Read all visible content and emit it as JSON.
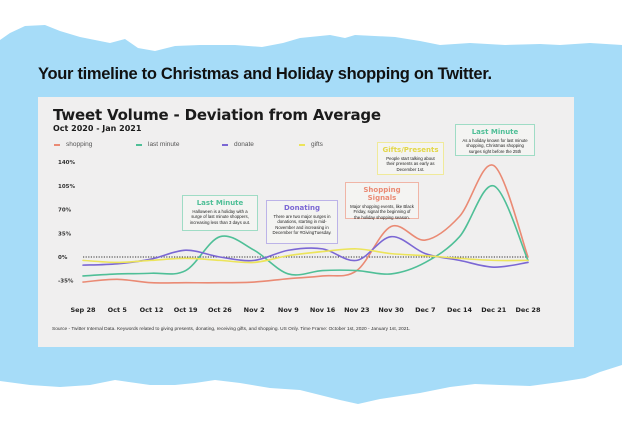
{
  "page": {
    "headline": "Your timeline to Christmas and Holiday shopping on Twitter.",
    "background_color": "#a6dcf8",
    "card_color": "#f0efef"
  },
  "chart_data": {
    "type": "line",
    "title": "Tweet Volume - Deviation from Average",
    "subtitle": "Oct 2020 - Jan 2021",
    "xlabel": "",
    "ylabel": "",
    "ylim": [
      -35,
      140
    ],
    "yticks": [
      "140%",
      "105%",
      "70%",
      "35%",
      "0%",
      "-35%"
    ],
    "ytick_values": [
      140,
      105,
      70,
      35,
      0,
      -35
    ],
    "grid": false,
    "baseline": {
      "value": 0,
      "style": "dotted"
    },
    "legend_position": "top-left",
    "categories": [
      "Sep 28",
      "Oct 5",
      "Oct 12",
      "Oct 19",
      "Oct 26",
      "Nov 2",
      "Nov 9",
      "Nov 16",
      "Nov 23",
      "Nov 30",
      "Dec 7",
      "Dec 14",
      "Dec 21",
      "Dec 28"
    ],
    "series": [
      {
        "name": "shopping",
        "color": "#ea8a74",
        "values": [
          -37,
          -33,
          -38,
          -38,
          -38,
          -37,
          -32,
          -28,
          -20,
          45,
          25,
          60,
          135,
          0
        ]
      },
      {
        "name": "last minute",
        "color": "#4fbf97",
        "values": [
          -28,
          -25,
          -24,
          -20,
          30,
          10,
          -25,
          -20,
          -20,
          -25,
          -8,
          30,
          105,
          -5
        ]
      },
      {
        "name": "donate",
        "color": "#7b67d4",
        "values": [
          -12,
          -10,
          -3,
          10,
          0,
          -5,
          10,
          12,
          -5,
          30,
          5,
          -5,
          -15,
          -8
        ]
      },
      {
        "name": "gifts",
        "color": "#ece45a",
        "values": [
          -5,
          -8,
          -5,
          -2,
          -5,
          -8,
          2,
          8,
          12,
          5,
          2,
          -2,
          -5,
          -5
        ]
      }
    ],
    "annotations": [
      {
        "title": "Last Minute",
        "body": "Halloween is a holiday with a surge of last minute shoppers, increasing less than 3 days out.",
        "color": "#4fbf97"
      },
      {
        "title": "Donating",
        "body": "There are two major surges in donations, starting in mid-November and increasing in December for #GivingTuesday.",
        "color": "#7b67d4"
      },
      {
        "title": "Shopping Signals",
        "body": "Major shopping events, like Black Friday, signal the beginning of the holiday shopping season.",
        "color": "#ea8a74"
      },
      {
        "title": "Gifts/Presents",
        "body": "People start talking about their presents as early as December 1st.",
        "color": "#ece45a"
      },
      {
        "title": "Last Minute",
        "body": "As a holiday known for last minute shopping, Christmas shopping surges right before the 25th",
        "color": "#4fbf97"
      }
    ],
    "source": "Source - Twitter Internal Data. Keywords related to giving presents, donating, receiving gifts, and shopping. US Only. Time Frame: October 1st, 2020 - January 1st, 2021."
  }
}
